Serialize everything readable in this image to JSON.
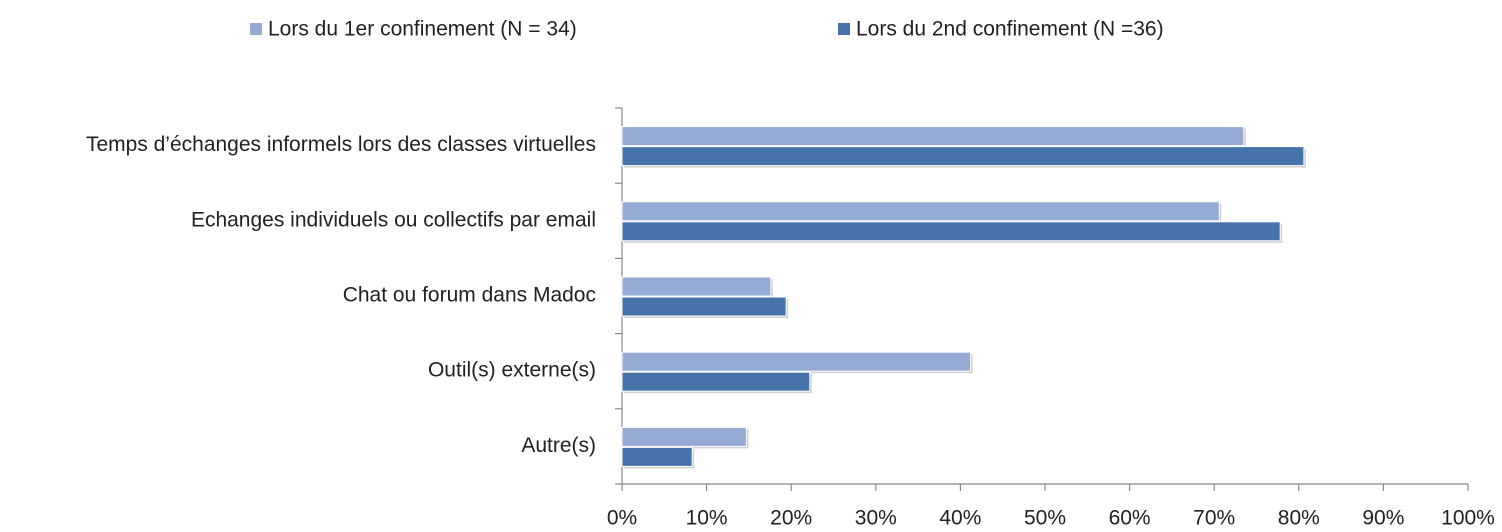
{
  "chart_data": {
    "type": "bar",
    "orientation": "horizontal",
    "categories": [
      "Temps d’échanges informels lors des classes virtuelles",
      "Echanges individuels ou collectifs par email",
      "Chat ou forum dans Madoc",
      "Outil(s) externe(s)",
      "Autre(s)"
    ],
    "series": [
      {
        "name": "Lors du 1er confinement (N = 34)",
        "color": "#95abd6",
        "values": [
          73.5,
          70.6,
          17.6,
          41.2,
          14.7
        ]
      },
      {
        "name": "Lors du 2nd confinement (N =36)",
        "color": "#4674aa",
        "values": [
          80.6,
          77.8,
          19.4,
          22.2,
          8.3
        ]
      }
    ],
    "xlim": [
      0,
      100
    ],
    "xticks": [
      {
        "value": 0,
        "label": "0%"
      },
      {
        "value": 10,
        "label": "10%"
      },
      {
        "value": 20,
        "label": "20%"
      },
      {
        "value": 30,
        "label": "30%"
      },
      {
        "value": 40,
        "label": "40%"
      },
      {
        "value": 50,
        "label": "50%"
      },
      {
        "value": 60,
        "label": "60%"
      },
      {
        "value": 70,
        "label": "70%"
      },
      {
        "value": 80,
        "label": "80%"
      },
      {
        "value": 90,
        "label": "90%"
      },
      {
        "value": 100,
        "label": "100%"
      }
    ],
    "legend": "top"
  }
}
